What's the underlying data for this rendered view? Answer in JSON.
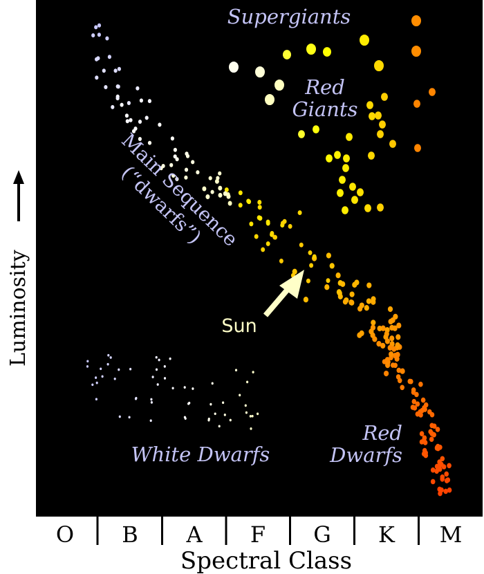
{
  "diagram": {
    "y_axis_label": "Luminosity",
    "x_axis_label": "Spectral Class",
    "spectral_classes": [
      "O",
      "B",
      "A",
      "F",
      "G",
      "K",
      "M"
    ],
    "region_labels": {
      "supergiants": "Supergiants",
      "red_giants_1": "Red",
      "red_giants_2": "Giants",
      "main_sequence_1": "Main Sequence",
      "main_sequence_2": "(“dwarfs”)",
      "white_dwarfs": "White Dwarfs",
      "red_dwarfs_1": "Red",
      "red_dwarfs_2": "Dwarfs"
    },
    "sun_label": "Sun",
    "colors": {
      "background": "#000000",
      "label": "#c4c4f6",
      "sun": "#ffffc8",
      "star_gradient": [
        "#c8c8ff",
        "#ffffff",
        "#ffffb0",
        "#ffff00",
        "#ffc000",
        "#ff8000",
        "#ff4000"
      ]
    }
  }
}
